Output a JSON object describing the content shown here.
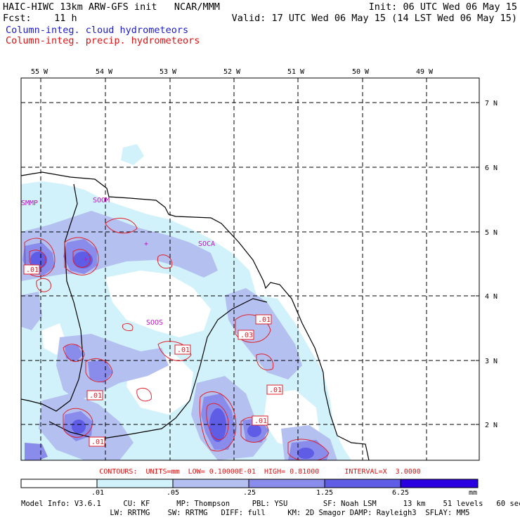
{
  "header": {
    "title": "HAIC-HIWC 13km ARW-GFS init   NCAR/MMM",
    "init": "Init: 06 UTC Wed 06 May 15",
    "fcst": "Fcst:    11 h",
    "valid": "Valid: 17 UTC Wed 06 May 15 (14 LST Wed 06 May 15)",
    "field1": "Column-integ. cloud hydrometeors",
    "field2": "Column-integ. precip. hydrometeors"
  },
  "map": {
    "lon_labels": [
      "55 W",
      "54 W",
      "53 W",
      "52 W",
      "51 W",
      "50 W",
      "49 W"
    ],
    "lat_labels": [
      "7 N",
      "6 N",
      "5 N",
      "4 N",
      "3 N",
      "2 N"
    ],
    "places": [
      "SMMP",
      "SOOM",
      "SOCA",
      "SOOS"
    ],
    "contour_labels": [
      ".01",
      ".01",
      ".01",
      ".03",
      ".01",
      ".01",
      ".01",
      ".01"
    ]
  },
  "contour_info": "CONTOURS:  UNITS=mm  LOW= 0.10000E-01  HIGH= 0.81000      INTERVAL=X  3.0000",
  "colorbar": {
    "labels": [
      ".01",
      ".05",
      ".25",
      "1.25",
      "6.25",
      "mm"
    ],
    "colors": [
      "#ffffff",
      "#d2f2fb",
      "#b4c0f0",
      "#8a8cec",
      "#5f5ce6",
      "#3c22e8",
      "#2a00e0"
    ]
  },
  "model_info": {
    "line1": "Model Info: V3.6.1     CU: KF      MP: Thompson     PBL: YSU        SF: Noah LSM      13 km    51 levels   60 sec",
    "line2": "                    LW: RRTMG    SW: RRTMG   DIFF: full     KM: 2D Smagor DAMP: Rayleigh3  SFLAY: MM5"
  },
  "colors": {
    "cloud_light": "#d2f2fb",
    "cloud_med": "#b4c0f0",
    "cloud_strong": "#8a8cec",
    "cloud_heavy": "#5f5ce6",
    "contour": "#e0202a",
    "place": "#c010c0"
  }
}
